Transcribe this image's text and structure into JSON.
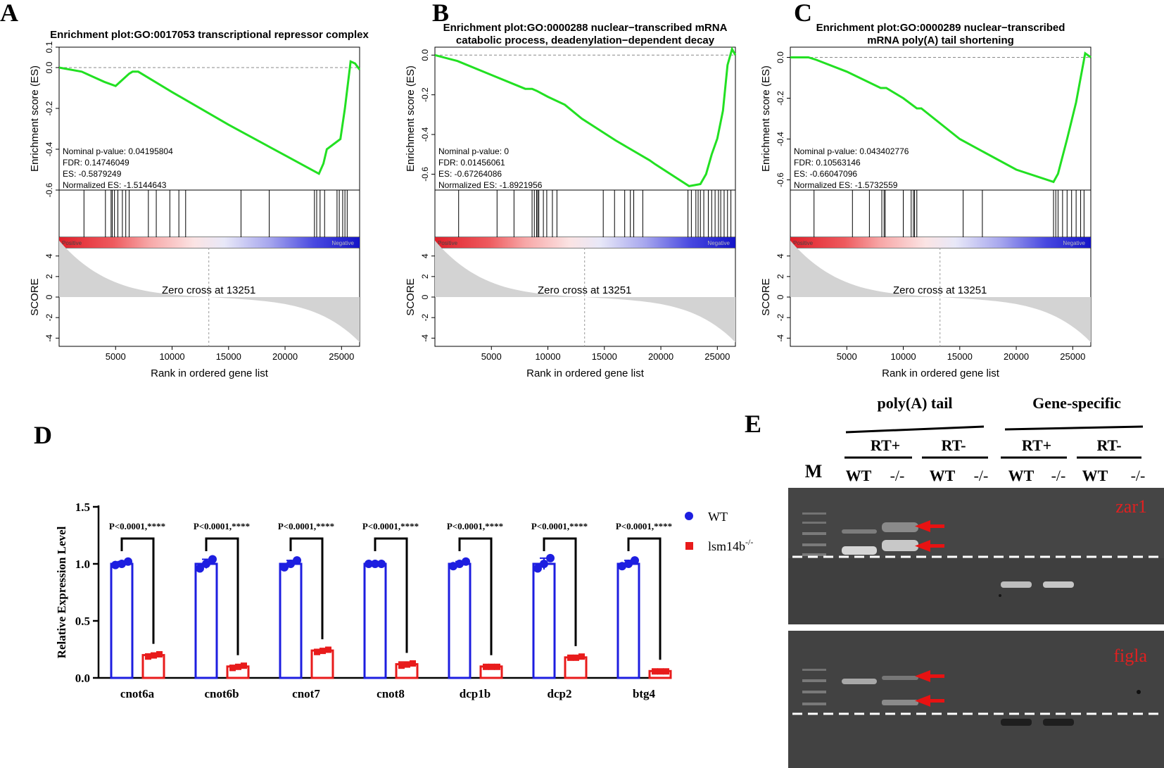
{
  "panels": {
    "a": "A",
    "b": "B",
    "c": "C",
    "d": "D",
    "e": "E"
  },
  "chart_data": [
    {
      "type": "line",
      "id": "gsea-A",
      "title_lines": [
        "Enrichment plot:GO:0017053 transcriptional repressor complex"
      ],
      "ylabel_es": "Enrichment score (ES)",
      "yticks_es": [
        "0.1",
        "0.0",
        "-0.2",
        "-0.4",
        "-0.6"
      ],
      "ylim_es": [
        -0.6,
        0.1
      ],
      "stats": [
        "Nominal p-value: 0.04195804",
        "FDR: 0.14746049",
        "ES: -0.5879249",
        "Normalized ES: -1.5144643"
      ],
      "es_curve": {
        "x": [
          0,
          2000,
          4000,
          5000,
          5800,
          6200,
          6500,
          7000,
          10000,
          15000,
          20000,
          23000,
          23400,
          23700,
          24900,
          25300,
          25800,
          26200,
          26600
        ],
        "y": [
          0.0,
          -0.02,
          -0.07,
          -0.09,
          -0.05,
          -0.03,
          -0.02,
          -0.02,
          -0.12,
          -0.28,
          -0.43,
          -0.52,
          -0.47,
          -0.4,
          -0.35,
          -0.2,
          0.03,
          0.02,
          -0.01
        ]
      },
      "hits": [
        2200,
        4100,
        4600,
        4700,
        4900,
        5200,
        5600,
        5900,
        6200,
        7900,
        8600,
        9800,
        10600,
        11200,
        16100,
        18600,
        22600,
        22800,
        23100,
        23500,
        24600,
        24800,
        25100,
        25300,
        25500
      ],
      "pos_label": "Positive",
      "neg_label": "Negative",
      "ylabel_score": "SCORE",
      "yticks_score": [
        "4",
        "2",
        "0",
        "-2",
        "-4"
      ],
      "zero_cross": 13251,
      "zero_cross_label": "Zero cross at 13251",
      "xticks": [
        "5000",
        "10000",
        "15000",
        "20000",
        "25000"
      ],
      "xlabel": "Rank in ordered gene list",
      "xmax": 26600
    },
    {
      "type": "line",
      "id": "gsea-B",
      "title_lines": [
        "Enrichment plot:GO:0000288 nuclear−transcribed mRNA",
        "catabolic process, deadenylation−dependent decay"
      ],
      "ylabel_es": "Enrichment score (ES)",
      "yticks_es": [
        "0.0",
        "-0.2",
        "-0.4",
        "-0.6"
      ],
      "ylim_es": [
        -0.68,
        0.04
      ],
      "stats": [
        "Nominal p-value: 0",
        "FDR: 0.01456061",
        "ES: -0.67264086",
        "Normalized ES: -1.8921956"
      ],
      "es_curve": {
        "x": [
          0,
          2000,
          5000,
          8000,
          8600,
          9000,
          10000,
          11500,
          13000,
          16000,
          19000,
          19500,
          22500,
          23500,
          24000,
          24500,
          25000,
          25500,
          25900,
          26300,
          26600
        ],
        "y": [
          0.0,
          -0.03,
          -0.1,
          -0.17,
          -0.17,
          -0.18,
          -0.21,
          -0.25,
          -0.32,
          -0.43,
          -0.53,
          -0.55,
          -0.66,
          -0.65,
          -0.6,
          -0.5,
          -0.42,
          -0.28,
          -0.05,
          0.03,
          0.0
        ]
      },
      "hits": [
        2100,
        5500,
        7000,
        8600,
        8800,
        9000,
        9100,
        9200,
        9600,
        9900,
        10400,
        10800,
        14900,
        15900,
        16800,
        17300,
        17600,
        18400,
        22400,
        22700,
        23100,
        23300,
        23500,
        23800,
        24200,
        24500,
        24800,
        25100,
        25300,
        25600,
        25900,
        26200
      ],
      "pos_label": "Positive",
      "neg_label": "Negative",
      "ylabel_score": "SCORE",
      "yticks_score": [
        "4",
        "2",
        "0",
        "-2",
        "-4"
      ],
      "zero_cross": 13251,
      "zero_cross_label": "Zero cross at 13251",
      "xticks": [
        "5000",
        "10000",
        "15000",
        "20000",
        "25000"
      ],
      "xlabel": "Rank in ordered gene list",
      "xmax": 26600
    },
    {
      "type": "line",
      "id": "gsea-C",
      "title_lines": [
        "Enrichment plot:GO:0000289 nuclear−transcribed",
        "mRNA poly(A) tail shortening"
      ],
      "ylabel_es": "Enrichment score (ES)",
      "yticks_es": [
        "0.0",
        "-0.2",
        "-0.4",
        "-0.6"
      ],
      "ylim_es": [
        -0.65,
        0.05
      ],
      "stats": [
        "Nominal p-value: 0.043402776",
        "FDR: 0.10563146",
        "ES: -0.66047096",
        "Normalized ES: -1.5732559"
      ],
      "es_curve": {
        "x": [
          0,
          1600,
          2200,
          5000,
          8000,
          8500,
          10000,
          11200,
          11600,
          15000,
          20000,
          23300,
          23700,
          24500,
          25300,
          26100,
          26600
        ],
        "y": [
          0.0,
          0.0,
          -0.01,
          -0.07,
          -0.15,
          -0.15,
          -0.2,
          -0.25,
          -0.25,
          -0.4,
          -0.55,
          -0.61,
          -0.57,
          -0.4,
          -0.22,
          0.02,
          0.0
        ]
      },
      "hits": [
        2100,
        5500,
        7000,
        8100,
        8300,
        8400,
        10000,
        10700,
        10900,
        11000,
        11200,
        15300,
        17000,
        23300,
        23500,
        23700,
        24100,
        24500,
        24900,
        25300,
        25700,
        26000
      ],
      "pos_label": "Positive",
      "neg_label": "Negative",
      "ylabel_score": "SCORE",
      "yticks_score": [
        "4",
        "2",
        "0",
        "-2",
        "-4"
      ],
      "zero_cross": 13251,
      "zero_cross_label": "Zero cross at 13251",
      "xticks": [
        "5000",
        "10000",
        "15000",
        "20000",
        "25000"
      ],
      "xlabel": "Rank in ordered gene list",
      "xmax": 26600
    },
    {
      "type": "bar",
      "id": "qpcr-D",
      "ylabel": "Relative Expression Level",
      "ylim": [
        0,
        1.5
      ],
      "yticks": [
        "0.0",
        "0.5",
        "1.0",
        "1.5"
      ],
      "categories": [
        "cnot6a",
        "cnot6b",
        "cnot7",
        "cnot8",
        "dcp1b",
        "dcp2",
        "btg4"
      ],
      "series": [
        {
          "name": "WT",
          "color": "#1d1ee0",
          "values": [
            1.0,
            1.0,
            1.0,
            1.0,
            1.0,
            1.0,
            1.0
          ],
          "errors": [
            0.02,
            0.04,
            0.03,
            0.005,
            0.02,
            0.05,
            0.03
          ],
          "points": [
            [
              0.99,
              1.0,
              1.02
            ],
            [
              0.96,
              1.0,
              1.04
            ],
            [
              0.97,
              1.0,
              1.03
            ],
            [
              1.0,
              1.0,
              1.0
            ],
            [
              0.98,
              1.0,
              1.02
            ],
            [
              0.96,
              1.0,
              1.05
            ],
            [
              0.98,
              1.0,
              1.03
            ]
          ]
        },
        {
          "name": "lsm14b",
          "sup": "-/-",
          "color": "#e81b1b",
          "values": [
            0.2,
            0.1,
            0.24,
            0.12,
            0.1,
            0.18,
            0.06
          ],
          "errors": [
            0.01,
            0.01,
            0.01,
            0.02,
            0.005,
            0.01,
            0.005
          ],
          "points": [
            [
              0.19,
              0.2,
              0.21
            ],
            [
              0.09,
              0.1,
              0.11
            ],
            [
              0.23,
              0.24,
              0.25
            ],
            [
              0.11,
              0.12,
              0.13
            ],
            [
              0.1,
              0.1,
              0.1
            ],
            [
              0.18,
              0.18,
              0.19
            ],
            [
              0.06,
              0.06,
              0.06
            ]
          ]
        }
      ],
      "annotations": [
        "P<0.0001,****",
        "P<0.0001,****",
        "P<0.0001,****",
        "P<0.0001,****",
        "P<0.0001,****",
        "P<0.0001,****",
        "P<0.0001,****"
      ]
    }
  ],
  "gel": {
    "header_polya": "poly(A) tail",
    "header_gene": "Gene-specific",
    "rt_plus": "RT+",
    "rt_minus": "RT-",
    "wt": "WT",
    "ko": "-/-",
    "marker": "M",
    "gene1": "zar1",
    "gene2": "figla"
  }
}
